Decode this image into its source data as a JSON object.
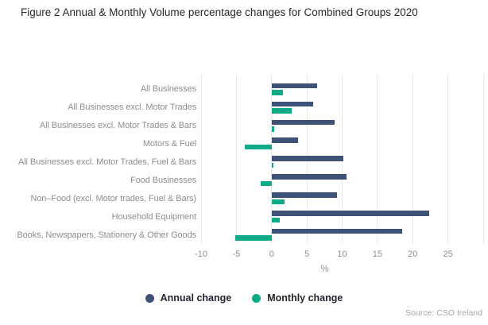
{
  "title": "Figure 2 Annual & Monthly Volume percentage changes for Combined Groups 2020",
  "chart_data": {
    "type": "bar",
    "orientation": "horizontal",
    "title": "Figure 2 Annual & Monthly Volume percentage changes for Combined Groups 2020",
    "categories": [
      "All Businesses",
      "All Businesses excl. Motor Trades",
      "All Businesses excl. Motor Trades & Bars",
      "Motors & Fuel",
      "All Businesses excl. Motor Trades, Fuel & Bars",
      "Food Businesses",
      "Non–Food (excl. Motor trades, Fuel & Bars)",
      "Household Equipment",
      "Books, Newspapers, Stationery & Other Goods"
    ],
    "series": [
      {
        "name": "Annual change",
        "color": "#3e5176",
        "values": [
          6.5,
          5.9,
          8.9,
          3.8,
          10.2,
          10.6,
          9.3,
          22.3,
          18.5
        ]
      },
      {
        "name": "Monthly change",
        "color": "#0faa87",
        "values": [
          1.6,
          2.8,
          0.4,
          -3.8,
          0.3,
          -1.5,
          1.8,
          1.2,
          -5.2
        ]
      }
    ],
    "xlabel": "%",
    "ylabel": "",
    "xlim": [
      -10,
      30
    ],
    "xticks": [
      -10,
      -5,
      0,
      5,
      10,
      15,
      20,
      25
    ],
    "gridline_values": [
      -10,
      -5,
      0,
      5,
      10,
      15,
      20,
      25,
      30
    ],
    "grid": true,
    "legend_position": "bottom"
  },
  "legend": {
    "items": [
      {
        "label": "Annual change",
        "color": "#3e5176"
      },
      {
        "label": "Monthly change",
        "color": "#0faa87"
      }
    ]
  },
  "source": "Source: CSO Ireland",
  "colors": {
    "annual": "#3e5176",
    "monthly": "#0faa87",
    "gridline": "#e8e8e8",
    "axis_text": "#8e8e8e",
    "title_text": "#28282e"
  }
}
